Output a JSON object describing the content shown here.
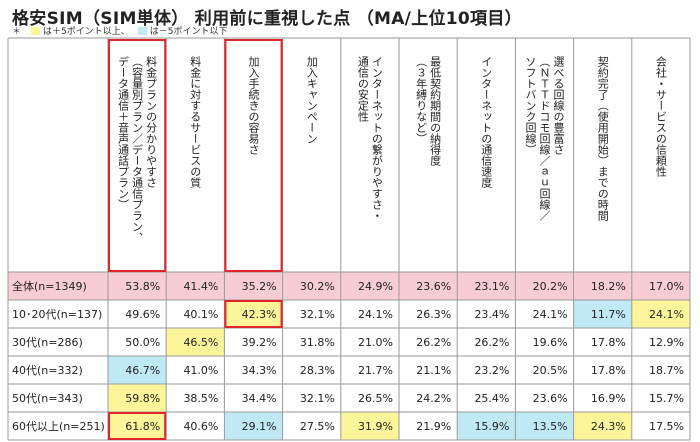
{
  "title": "格安SIM（SIM単体） 利用前に重視した点 （MA/上位10項目）",
  "legend": {
    "note_marker": "＊",
    "plus_label": "は＋5ポイント以上、",
    "minus_label": "は－5ポイント以下",
    "plus_color": "#fdf59a",
    "minus_color": "#bfe9f4"
  },
  "colors": {
    "total_row": "#f7cdd3",
    "highlight_border": "#e0262d",
    "grid": "#9a9a9a"
  },
  "chart_data": {
    "type": "table",
    "columns": [
      [
        "料金プランの分かりやすさ",
        "（容量別プラン／データ通信プラン、",
        "データ通信＋音声通話プラン）"
      ],
      [
        "料金に対するサービスの質"
      ],
      [
        "加入手続きの容易さ"
      ],
      [
        "加入キャンペーン"
      ],
      [
        "インターネットの繋がりやすさ・",
        "通信の安定性"
      ],
      [
        "最低契約期間の納得度",
        "（３年縛りなど）"
      ],
      [
        "インターネットの通信速度"
      ],
      [
        "選べる回線の豊富さ",
        "（ＮＴＴドコモ回線／ａｕ回線／",
        "ソフトバンク回線）"
      ],
      [
        "契約完了（使用開始）までの時間"
      ],
      [
        "会社・サービスの信頼性"
      ]
    ],
    "rows": [
      {
        "label": "全体(n=1349)",
        "values": [
          "53.8%",
          "41.4%",
          "35.2%",
          "30.2%",
          "24.9%",
          "23.6%",
          "23.1%",
          "20.2%",
          "18.2%",
          "17.0%"
        ],
        "flags": [
          0,
          0,
          0,
          0,
          0,
          0,
          0,
          0,
          0,
          0
        ]
      },
      {
        "label": "10･20代(n=137)",
        "values": [
          "49.6%",
          "40.1%",
          "42.3%",
          "32.1%",
          "24.1%",
          "26.3%",
          "23.4%",
          "24.1%",
          "11.7%",
          "24.1%"
        ],
        "flags": [
          0,
          0,
          1,
          0,
          0,
          0,
          0,
          0,
          -1,
          1
        ]
      },
      {
        "label": "30代(n=286)",
        "values": [
          "50.0%",
          "46.5%",
          "39.2%",
          "31.8%",
          "21.0%",
          "26.2%",
          "26.2%",
          "19.6%",
          "17.8%",
          "12.9%"
        ],
        "flags": [
          0,
          1,
          0,
          0,
          0,
          0,
          0,
          0,
          0,
          0
        ]
      },
      {
        "label": "40代(n=332)",
        "values": [
          "46.7%",
          "41.0%",
          "34.3%",
          "28.3%",
          "21.7%",
          "21.1%",
          "23.2%",
          "20.5%",
          "17.8%",
          "18.7%"
        ],
        "flags": [
          -1,
          0,
          0,
          0,
          0,
          0,
          0,
          0,
          0,
          0
        ]
      },
      {
        "label": "50代(n=343)",
        "values": [
          "59.8%",
          "38.5%",
          "34.4%",
          "32.1%",
          "26.5%",
          "24.2%",
          "25.4%",
          "23.6%",
          "16.9%",
          "15.7%"
        ],
        "flags": [
          1,
          0,
          0,
          0,
          0,
          0,
          0,
          0,
          0,
          0
        ]
      },
      {
        "label": "60代以上(n=251)",
        "values": [
          "61.8%",
          "40.6%",
          "29.1%",
          "27.5%",
          "31.9%",
          "21.9%",
          "15.9%",
          "13.5%",
          "24.3%",
          "17.5%"
        ],
        "flags": [
          1,
          0,
          -1,
          0,
          1,
          0,
          -1,
          -1,
          1,
          0
        ]
      }
    ],
    "highlighted_columns": [
      0,
      2
    ],
    "highlighted_cells": [
      [
        1,
        2
      ],
      [
        5,
        0
      ]
    ]
  }
}
